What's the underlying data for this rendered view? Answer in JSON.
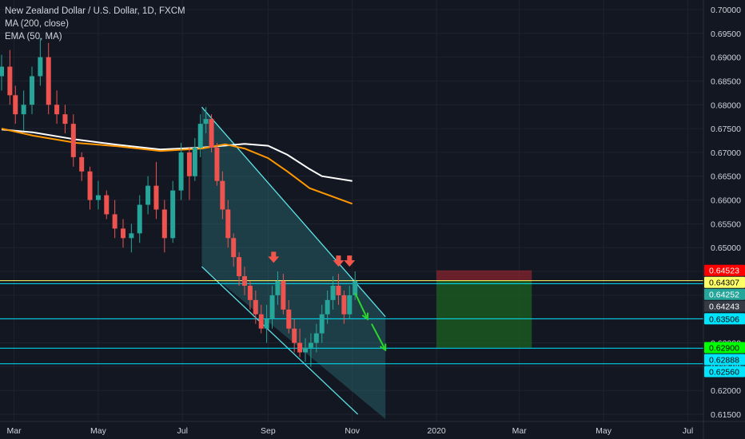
{
  "chart_data": {
    "type": "candlestick",
    "symbol": "New Zealand Dollar / U.S. Dollar, 1D, FXCM",
    "indicators": [
      {
        "name": "MA (200, close)",
        "color": "#ffffff",
        "points": [
          [
            "2019-02-20",
            0.6748
          ],
          [
            "2019-03-15",
            0.6742
          ],
          [
            "2019-04-15",
            0.6727
          ],
          [
            "2019-05-15",
            0.6716
          ],
          [
            "2019-06-15",
            0.6706
          ],
          [
            "2019-07-15",
            0.671
          ],
          [
            "2019-08-15",
            0.6718
          ],
          [
            "2019-09-01",
            0.6714
          ],
          [
            "2019-09-15",
            0.6695
          ],
          [
            "2019-10-01",
            0.6665
          ],
          [
            "2019-10-10",
            0.665
          ],
          [
            "2019-11-01",
            0.664
          ]
        ]
      },
      {
        "name": "EMA (50, MA)",
        "color": "#ff9800",
        "points": [
          [
            "2019-02-20",
            0.675
          ],
          [
            "2019-03-15",
            0.6735
          ],
          [
            "2019-04-15",
            0.672
          ],
          [
            "2019-05-15",
            0.6713
          ],
          [
            "2019-06-15",
            0.6703
          ],
          [
            "2019-07-15",
            0.6708
          ],
          [
            "2019-08-01",
            0.6717
          ],
          [
            "2019-08-15",
            0.6708
          ],
          [
            "2019-09-01",
            0.6688
          ],
          [
            "2019-09-15",
            0.666
          ],
          [
            "2019-10-01",
            0.6625
          ],
          [
            "2019-11-01",
            0.6592
          ]
        ]
      }
    ],
    "ohlc": [
      [
        "2019-02-20",
        0.686,
        0.6905,
        0.683,
        0.688
      ],
      [
        "2019-02-26",
        0.688,
        0.6915,
        0.68,
        0.682
      ],
      [
        "2019-03-02",
        0.682,
        0.684,
        0.676,
        0.678
      ],
      [
        "2019-03-08",
        0.678,
        0.683,
        0.6745,
        0.68
      ],
      [
        "2019-03-14",
        0.68,
        0.688,
        0.678,
        0.686
      ],
      [
        "2019-03-20",
        0.686,
        0.694,
        0.684,
        0.69
      ],
      [
        "2019-03-26",
        0.69,
        0.693,
        0.678,
        0.68
      ],
      [
        "2019-04-01",
        0.68,
        0.683,
        0.676,
        0.678
      ],
      [
        "2019-04-07",
        0.678,
        0.68,
        0.674,
        0.676
      ],
      [
        "2019-04-13",
        0.676,
        0.678,
        0.667,
        0.669
      ],
      [
        "2019-04-19",
        0.669,
        0.67,
        0.664,
        0.666
      ],
      [
        "2019-04-25",
        0.666,
        0.667,
        0.658,
        0.66
      ],
      [
        "2019-05-01",
        0.66,
        0.664,
        0.658,
        0.661
      ],
      [
        "2019-05-07",
        0.661,
        0.662,
        0.656,
        0.657
      ],
      [
        "2019-05-13",
        0.657,
        0.66,
        0.652,
        0.654
      ],
      [
        "2019-05-19",
        0.654,
        0.656,
        0.65,
        0.652
      ],
      [
        "2019-05-25",
        0.652,
        0.655,
        0.649,
        0.653
      ],
      [
        "2019-05-31",
        0.653,
        0.661,
        0.651,
        0.659
      ],
      [
        "2019-06-06",
        0.659,
        0.665,
        0.657,
        0.663
      ],
      [
        "2019-06-12",
        0.663,
        0.668,
        0.656,
        0.658
      ],
      [
        "2019-06-18",
        0.658,
        0.66,
        0.649,
        0.652
      ],
      [
        "2019-06-24",
        0.652,
        0.664,
        0.651,
        0.662
      ],
      [
        "2019-06-30",
        0.662,
        0.672,
        0.66,
        0.67
      ],
      [
        "2019-07-06",
        0.67,
        0.671,
        0.66,
        0.665
      ],
      [
        "2019-07-10",
        0.665,
        0.673,
        0.664,
        0.671
      ],
      [
        "2019-07-14",
        0.671,
        0.678,
        0.669,
        0.676
      ],
      [
        "2019-07-18",
        0.676,
        0.6795,
        0.674,
        0.677
      ],
      [
        "2019-07-22",
        0.677,
        0.678,
        0.67,
        0.671
      ],
      [
        "2019-07-26",
        0.671,
        0.672,
        0.663,
        0.664
      ],
      [
        "2019-07-30",
        0.664,
        0.666,
        0.656,
        0.658
      ],
      [
        "2019-08-03",
        0.658,
        0.66,
        0.65,
        0.652
      ],
      [
        "2019-08-07",
        0.652,
        0.653,
        0.646,
        0.648
      ],
      [
        "2019-08-11",
        0.648,
        0.649,
        0.642,
        0.644
      ],
      [
        "2019-08-15",
        0.644,
        0.646,
        0.64,
        0.642
      ],
      [
        "2019-08-19",
        0.642,
        0.643,
        0.637,
        0.639
      ],
      [
        "2019-08-23",
        0.639,
        0.641,
        0.634,
        0.636
      ],
      [
        "2019-08-27",
        0.636,
        0.638,
        0.632,
        0.633
      ],
      [
        "2019-08-31",
        0.633,
        0.638,
        0.63,
        0.635
      ],
      [
        "2019-09-04",
        0.635,
        0.642,
        0.633,
        0.64
      ],
      [
        "2019-09-08",
        0.64,
        0.645,
        0.638,
        0.643
      ],
      [
        "2019-09-12",
        0.643,
        0.6445,
        0.636,
        0.637
      ],
      [
        "2019-09-16",
        0.637,
        0.639,
        0.632,
        0.633
      ],
      [
        "2019-09-20",
        0.633,
        0.635,
        0.628,
        0.63
      ],
      [
        "2019-09-24",
        0.63,
        0.633,
        0.627,
        0.628
      ],
      [
        "2019-09-28",
        0.628,
        0.631,
        0.626,
        0.629
      ],
      [
        "2019-10-02",
        0.629,
        0.632,
        0.625,
        0.63
      ],
      [
        "2019-10-06",
        0.63,
        0.634,
        0.628,
        0.632
      ],
      [
        "2019-10-10",
        0.632,
        0.638,
        0.63,
        0.636
      ],
      [
        "2019-10-14",
        0.636,
        0.641,
        0.634,
        0.639
      ],
      [
        "2019-10-18",
        0.639,
        0.644,
        0.637,
        0.642
      ],
      [
        "2019-10-22",
        0.642,
        0.6445,
        0.638,
        0.64
      ],
      [
        "2019-10-26",
        0.64,
        0.641,
        0.634,
        0.636
      ],
      [
        "2019-10-30",
        0.636,
        0.642,
        0.635,
        0.64
      ],
      [
        "2019-11-03",
        0.64,
        0.645,
        0.639,
        0.643
      ]
    ],
    "price_ticks": [
      "0.70000",
      "0.69500",
      "0.69000",
      "0.68500",
      "0.68000",
      "0.67500",
      "0.67000",
      "0.66500",
      "0.66000",
      "0.65500",
      "0.65000",
      "0.64500",
      "0.64000",
      "0.63500",
      "0.63000",
      "0.62500",
      "0.62000",
      "0.61500"
    ],
    "time_ticks": [
      [
        "2019-03-01",
        "Mar"
      ],
      [
        "2019-05-01",
        "May"
      ],
      [
        "2019-07-01",
        "Jul"
      ],
      [
        "2019-09-01",
        "Sep"
      ],
      [
        "2019-11-01",
        "Nov"
      ],
      [
        "2020-01-01",
        "2020"
      ],
      [
        "2020-03-01",
        "Mar"
      ],
      [
        "2020-05-01",
        "May"
      ],
      [
        "2020-07-01",
        "Jul"
      ]
    ],
    "price_labels": [
      {
        "value": 0.64523,
        "text": "0.64523",
        "bg": "#ff0000",
        "fg": "#ffffff"
      },
      {
        "value": 0.64307,
        "text": "0.64307",
        "bg": "#ffff66",
        "fg": "#000000"
      },
      {
        "value": 0.64252,
        "text": "0.64252",
        "bg": "#26a69a",
        "fg": "#ffffff"
      },
      {
        "value": 0.64243,
        "text": "0.64243",
        "bg": "#363a45",
        "fg": "#ffffff"
      },
      {
        "value": 0.63506,
        "text": "0.63506",
        "bg": "#00e5ff",
        "fg": "#000000"
      },
      {
        "value": 0.629,
        "text": "0.62900",
        "bg": "#00ff00",
        "fg": "#000000"
      },
      {
        "value": 0.62888,
        "text": "0.62888",
        "bg": "#00e5ff",
        "fg": "#000000"
      },
      {
        "value": 0.6256,
        "text": "0.62560",
        "bg": "#00e5ff",
        "fg": "#000000"
      }
    ],
    "horizontal_lines": [
      {
        "value": 0.64307,
        "color": "#ffff66"
      },
      {
        "value": 0.64243,
        "color": "#00e5ff"
      },
      {
        "value": 0.63506,
        "color": "#00e5ff"
      },
      {
        "value": 0.62888,
        "color": "#00e5ff"
      },
      {
        "value": 0.6256,
        "color": "#00e5ff"
      }
    ],
    "channel": {
      "color": "#5ce1e6",
      "upper": [
        [
          "2019-07-15",
          0.6795
        ],
        [
          "2019-11-25",
          0.6355
        ]
      ],
      "lower": [
        [
          "2019-07-15",
          0.646
        ],
        [
          "2019-11-05",
          0.615
        ]
      ],
      "fill_from": "2019-07-15",
      "fill_to": "2019-11-25",
      "fill_top": 0.6795,
      "fill_bottom": 0.614
    },
    "position": {
      "from": "2020-01-01",
      "to": "2020-03-10",
      "entry": 0.64307,
      "stop": 0.64523,
      "target": 0.629,
      "stop_color": "#b22833",
      "target_color": "#1b5e20"
    },
    "markers_down_red": [
      [
        "2019-09-05",
        0.6478
      ],
      [
        "2019-10-22",
        0.647
      ],
      [
        "2019-10-30",
        0.647
      ]
    ],
    "arrows_green": [
      {
        "from": [
          "2019-11-03",
          0.6405
        ],
        "to": [
          "2019-11-12",
          0.635
        ]
      },
      {
        "from": [
          "2019-11-15",
          0.634
        ],
        "to": [
          "2019-11-25",
          0.6285
        ]
      }
    ],
    "ylim": [
      0.6135,
      0.702
    ],
    "colors": {
      "up": "#26a69a",
      "down": "#ef5350",
      "bg": "#131722",
      "text": "#d1d4dc",
      "grid": "#1f2330",
      "axis": "#2a2e39"
    }
  }
}
